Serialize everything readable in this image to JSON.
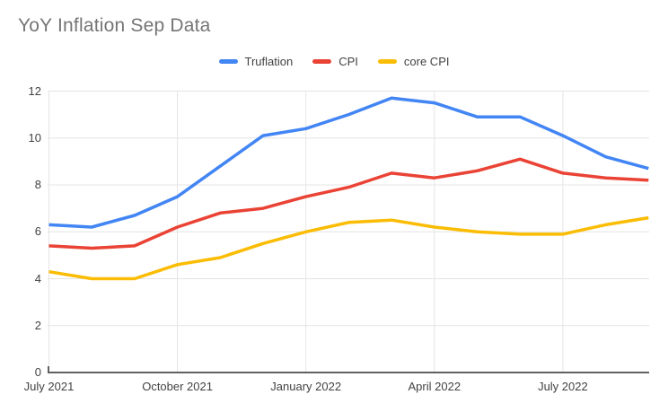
{
  "page": {
    "background_color": "#ffffff"
  },
  "chart_data": {
    "type": "line",
    "title": "YoY Inflation Sep Data",
    "title_color": "#757575",
    "x": [
      "July 2021",
      "August 2021",
      "September 2021",
      "October 2021",
      "November 2021",
      "December 2021",
      "January 2022",
      "February 2022",
      "March 2022",
      "April 2022",
      "May 2022",
      "June 2022",
      "July 2022",
      "August 2022",
      "September 2022"
    ],
    "x_tick_labels": [
      "July 2021",
      "October 2021",
      "January 2022",
      "April 2022",
      "July 2022"
    ],
    "x_tick_indices": [
      0,
      3,
      6,
      9,
      12
    ],
    "y_ticks": [
      0,
      2,
      4,
      6,
      8,
      10,
      12
    ],
    "ylim": [
      0,
      12
    ],
    "xlabel": "",
    "ylabel": "",
    "grid": true,
    "legend_position": "top",
    "gridline_color": "#e4e4e4",
    "axis_line_color": "#616161",
    "axis_text_color": "#424242",
    "series": [
      {
        "name": "Truflation",
        "color": "#4285F4",
        "values": [
          6.3,
          6.2,
          6.7,
          7.5,
          8.8,
          10.1,
          10.4,
          11.0,
          11.7,
          11.5,
          10.9,
          10.9,
          10.1,
          9.2,
          8.7
        ]
      },
      {
        "name": "CPI",
        "color": "#EA4335",
        "values": [
          5.4,
          5.3,
          5.4,
          6.2,
          6.8,
          7.0,
          7.5,
          7.9,
          8.5,
          8.3,
          8.6,
          9.1,
          8.5,
          8.3,
          8.2
        ]
      },
      {
        "name": "core CPI",
        "color": "#FBBC04",
        "values": [
          4.3,
          4.0,
          4.0,
          4.6,
          4.9,
          5.5,
          6.0,
          6.4,
          6.5,
          6.2,
          6.0,
          5.9,
          5.9,
          6.3,
          6.6
        ]
      }
    ]
  }
}
